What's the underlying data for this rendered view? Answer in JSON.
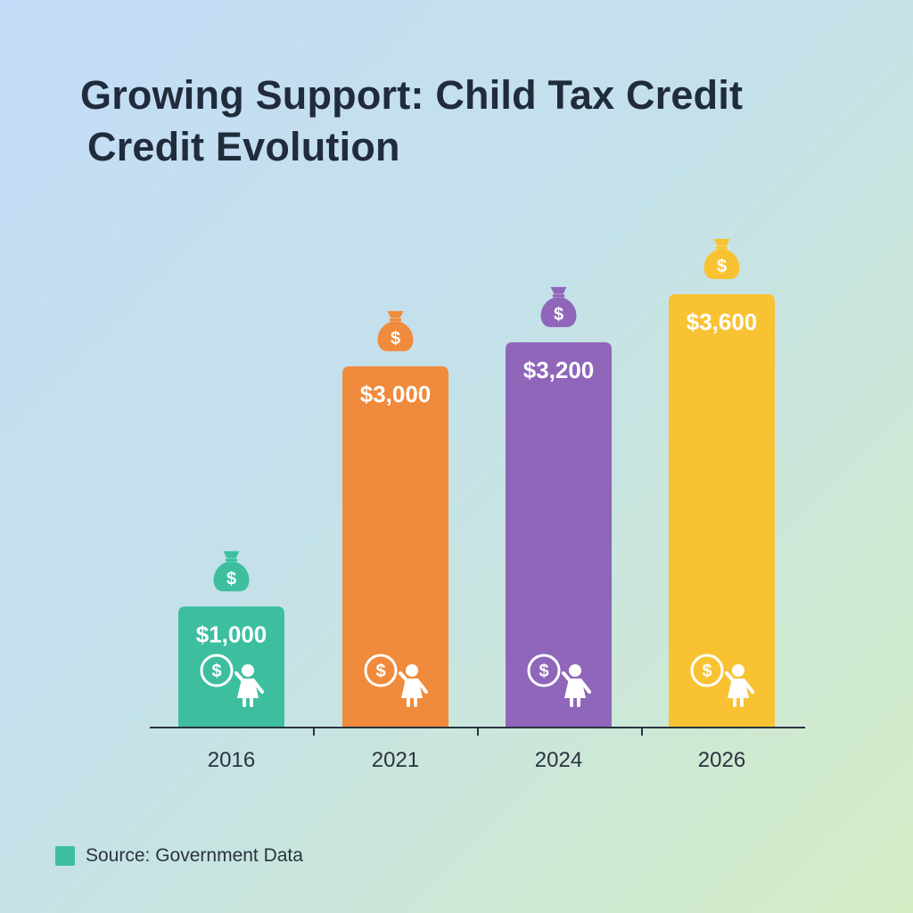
{
  "title_lines": [
    "Growing Support: Child Tax Credit",
    "Credit Evolution"
  ],
  "chart_data": {
    "type": "bar",
    "title": "Growing Support: Child Tax Credit Credit Evolution",
    "categories": [
      "2016",
      "2021",
      "2024",
      "2026"
    ],
    "values": [
      1000,
      3000,
      3200,
      3600
    ],
    "value_labels": [
      "$1,000",
      "$3,000",
      "$3,200",
      "$3,600"
    ],
    "bar_colors": [
      "#3dbf9f",
      "#f08a3c",
      "#8f66ba",
      "#f8c233"
    ],
    "icons": [
      "money-bag-icon",
      "coin-icon",
      "child-icon"
    ],
    "xlabel": "",
    "ylabel": "",
    "grid": false
  },
  "legend": {
    "label": "Source: Government Data",
    "color": "#3dbf9f"
  }
}
